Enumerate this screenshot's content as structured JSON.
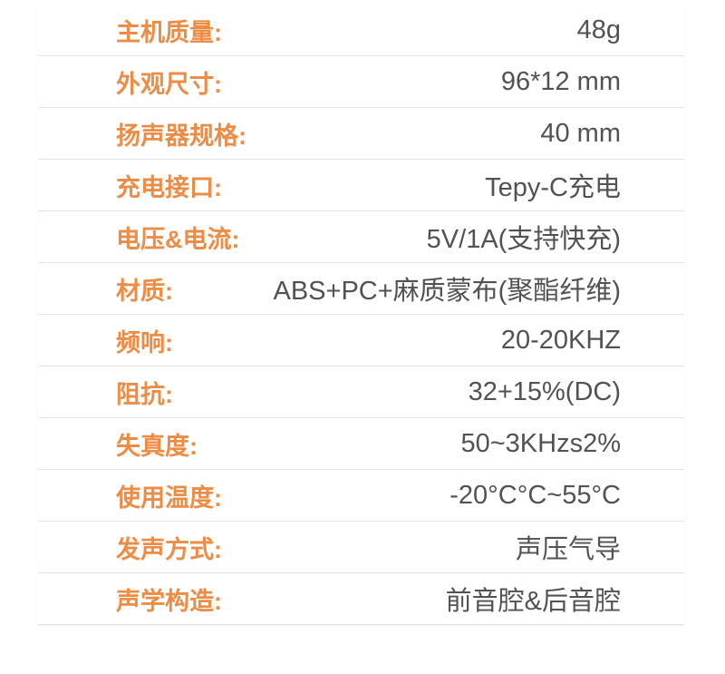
{
  "page": {
    "background_color": "#ffffff"
  },
  "table": {
    "label_color": "#ED8C44",
    "value_color": "#525252",
    "divider_color": "#e2e2e2",
    "rows": [
      {
        "label": "主机质量:",
        "value": "48g"
      },
      {
        "label": "外观尺寸:",
        "value": "96*12 mm"
      },
      {
        "label": "扬声器规格:",
        "value": "40 mm"
      },
      {
        "label": "充电接口:",
        "value": "Tepy-C充电"
      },
      {
        "label": "电压&电流:",
        "value": "5V/1A(支持快充)"
      },
      {
        "label": "材质:",
        "value": "ABS+PC+麻质蒙布(聚酯纤维)"
      },
      {
        "label": "频响:",
        "value": "20-20KHZ"
      },
      {
        "label": "阻抗:",
        "value": "32+15%(DC)"
      },
      {
        "label": "失真度:",
        "value": "50~3KHzs2%"
      },
      {
        "label": "使用温度:",
        "value": "-20°C°C~55°C"
      },
      {
        "label": "发声方式:",
        "value": "声压气导"
      },
      {
        "label": "声学构造:",
        "value": "前音腔&后音腔"
      }
    ]
  }
}
